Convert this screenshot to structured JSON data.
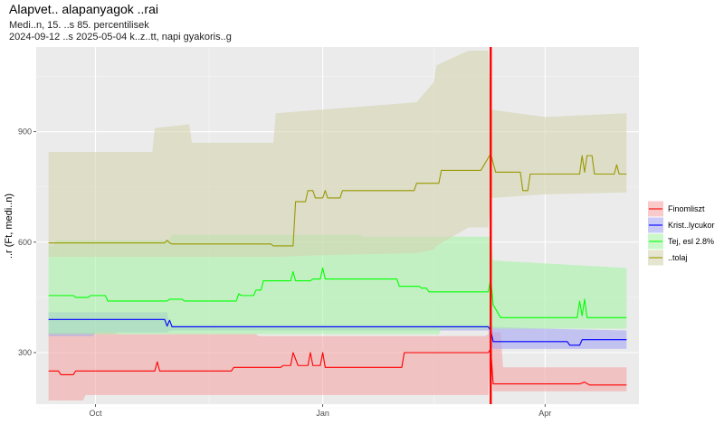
{
  "chart_data": {
    "type": "line",
    "title": "Alapvet.. alapanyagok ..rai",
    "subtitle_line1": "Medi..n, 15. ..s 85. percentilisek",
    "subtitle_line2": "2024-09-12 ..s 2025-05-04 k..z..tt, napi gyakoris..g",
    "xlabel": "",
    "ylabel": "..r (Ft, medi..n)",
    "x_range": [
      "2024-09-07",
      "2025-05-09"
    ],
    "ylim": [
      160,
      1130
    ],
    "y_ticks": [
      300,
      600,
      900
    ],
    "x_ticks": [
      {
        "date": "2024-10-01",
        "label": "Oct"
      },
      {
        "date": "2025-01-01",
        "label": "Jan"
      },
      {
        "date": "2025-04-01",
        "label": "Apr"
      }
    ],
    "grid": true,
    "legend_position": "right",
    "vline": {
      "date": "2025-03-10",
      "color": "#ff0000"
    },
    "series": [
      {
        "name": "Finomliszt",
        "color": "#ff0000",
        "band_color": "#f4a6a6",
        "points": [
          [
            "2024-09-12",
            250
          ],
          [
            "2024-09-16",
            250
          ],
          [
            "2024-09-17",
            240
          ],
          [
            "2024-09-22",
            240
          ],
          [
            "2024-09-23",
            250
          ],
          [
            "2024-10-25",
            250
          ],
          [
            "2024-10-26",
            275
          ],
          [
            "2024-10-27",
            250
          ],
          [
            "2024-11-25",
            250
          ],
          [
            "2024-11-26",
            260
          ],
          [
            "2024-12-15",
            260
          ],
          [
            "2024-12-16",
            265
          ],
          [
            "2024-12-19",
            265
          ],
          [
            "2024-12-20",
            300
          ],
          [
            "2024-12-22",
            265
          ],
          [
            "2024-12-26",
            265
          ],
          [
            "2024-12-27",
            300
          ],
          [
            "2024-12-28",
            265
          ],
          [
            "2024-12-31",
            265
          ],
          [
            "2025-01-01",
            300
          ],
          [
            "2025-01-02",
            260
          ],
          [
            "2025-02-02",
            260
          ],
          [
            "2025-02-03",
            300
          ],
          [
            "2025-03-05",
            300
          ],
          [
            "2025-03-07",
            300
          ],
          [
            "2025-03-09",
            300
          ],
          [
            "2025-03-10",
            310
          ],
          [
            "2025-03-11",
            215
          ],
          [
            "2025-04-15",
            215
          ],
          [
            "2025-04-17",
            220
          ],
          [
            "2025-04-19",
            212
          ],
          [
            "2025-05-04",
            212
          ]
        ],
        "band": [
          [
            "2024-09-12",
            170,
            355
          ],
          [
            "2024-09-26",
            170,
            355
          ],
          [
            "2024-09-27",
            185,
            355
          ],
          [
            "2024-10-09",
            185,
            355
          ],
          [
            "2024-10-10",
            185,
            350
          ],
          [
            "2024-12-05",
            185,
            350
          ],
          [
            "2024-12-06",
            185,
            345
          ],
          [
            "2025-03-08",
            185,
            345
          ],
          [
            "2025-03-09",
            185,
            350
          ],
          [
            "2025-03-10",
            320,
            360
          ],
          [
            "2025-03-11",
            195,
            355
          ],
          [
            "2025-03-14",
            195,
            355
          ],
          [
            "2025-03-15",
            195,
            260
          ],
          [
            "2025-05-04",
            195,
            260
          ]
        ]
      },
      {
        "name": "Krist..lycukor",
        "color": "#0000ff",
        "band_color": "#a6a6f4",
        "points": [
          [
            "2024-09-12",
            390
          ],
          [
            "2024-10-29",
            390
          ],
          [
            "2024-10-30",
            372
          ],
          [
            "2024-10-31",
            388
          ],
          [
            "2024-11-01",
            370
          ],
          [
            "2025-03-09",
            370
          ],
          [
            "2025-03-10",
            360
          ],
          [
            "2025-03-11",
            330
          ],
          [
            "2025-04-10",
            330
          ],
          [
            "2025-04-11",
            320
          ],
          [
            "2025-04-15",
            320
          ],
          [
            "2025-04-16",
            335
          ],
          [
            "2025-05-04",
            335
          ]
        ],
        "band": [
          [
            "2024-09-12",
            345,
            410
          ],
          [
            "2024-09-30",
            345,
            410
          ],
          [
            "2024-10-01",
            355,
            410
          ],
          [
            "2024-10-30",
            355,
            410
          ],
          [
            "2024-10-31",
            360,
            375
          ],
          [
            "2025-03-08",
            360,
            375
          ],
          [
            "2025-03-09",
            360,
            375
          ],
          [
            "2025-03-10",
            315,
            375
          ],
          [
            "2025-03-11",
            310,
            370
          ],
          [
            "2025-04-01",
            310,
            365
          ],
          [
            "2025-05-04",
            310,
            360
          ]
        ]
      },
      {
        "name": "Tej, esl 2.8%",
        "color": "#00ff00",
        "band_color": "#a6f4a6",
        "points": [
          [
            "2024-09-12",
            455
          ],
          [
            "2024-09-22",
            455
          ],
          [
            "2024-09-23",
            450
          ],
          [
            "2024-09-28",
            450
          ],
          [
            "2024-09-29",
            455
          ],
          [
            "2024-10-05",
            455
          ],
          [
            "2024-10-06",
            440
          ],
          [
            "2024-10-30",
            440
          ],
          [
            "2024-10-31",
            445
          ],
          [
            "2024-11-05",
            445
          ],
          [
            "2024-11-06",
            440
          ],
          [
            "2024-11-27",
            440
          ],
          [
            "2024-11-28",
            460
          ],
          [
            "2024-11-29",
            455
          ],
          [
            "2024-12-04",
            455
          ],
          [
            "2024-12-05",
            470
          ],
          [
            "2024-12-07",
            470
          ],
          [
            "2024-12-08",
            495
          ],
          [
            "2024-12-19",
            495
          ],
          [
            "2024-12-20",
            520
          ],
          [
            "2024-12-21",
            495
          ],
          [
            "2024-12-27",
            495
          ],
          [
            "2024-12-28",
            500
          ],
          [
            "2024-12-31",
            500
          ],
          [
            "2025-01-01",
            530
          ],
          [
            "2025-01-02",
            500
          ],
          [
            "2025-01-31",
            500
          ],
          [
            "2025-02-01",
            480
          ],
          [
            "2025-02-09",
            480
          ],
          [
            "2025-02-10",
            475
          ],
          [
            "2025-02-12",
            475
          ],
          [
            "2025-02-13",
            465
          ],
          [
            "2025-03-09",
            465
          ],
          [
            "2025-03-10",
            500
          ],
          [
            "2025-03-11",
            430
          ],
          [
            "2025-03-14",
            395
          ],
          [
            "2025-04-14",
            395
          ],
          [
            "2025-04-15",
            440
          ],
          [
            "2025-04-16",
            400
          ],
          [
            "2025-04-17",
            445
          ],
          [
            "2025-04-18",
            395
          ],
          [
            "2025-05-04",
            395
          ]
        ],
        "band": [
          [
            "2024-09-12",
            350,
            590
          ],
          [
            "2024-09-14",
            350,
            590
          ],
          [
            "2024-09-15",
            350,
            605
          ],
          [
            "2024-10-31",
            350,
            605
          ],
          [
            "2024-11-01",
            350,
            620
          ],
          [
            "2025-01-16",
            350,
            620
          ],
          [
            "2025-01-17",
            350,
            615
          ],
          [
            "2025-02-17",
            350,
            615
          ],
          [
            "2025-02-18",
            365,
            615
          ],
          [
            "2025-03-10",
            365,
            615
          ],
          [
            "2025-03-11",
            365,
            550
          ],
          [
            "2025-05-04",
            365,
            530
          ]
        ]
      },
      {
        "name": "..tolaj",
        "color": "#999900",
        "band_color": "#d4d4b0",
        "points": [
          [
            "2024-09-12",
            598
          ],
          [
            "2024-10-29",
            598
          ],
          [
            "2024-10-30",
            605
          ],
          [
            "2024-10-31",
            598
          ],
          [
            "2024-11-01",
            595
          ],
          [
            "2024-12-11",
            595
          ],
          [
            "2024-12-12",
            590
          ],
          [
            "2024-12-20",
            590
          ],
          [
            "2024-12-21",
            710
          ],
          [
            "2024-12-25",
            710
          ],
          [
            "2024-12-26",
            740
          ],
          [
            "2024-12-28",
            740
          ],
          [
            "2024-12-29",
            720
          ],
          [
            "2025-01-01",
            720
          ],
          [
            "2025-01-02",
            740
          ],
          [
            "2025-01-03",
            720
          ],
          [
            "2025-01-08",
            720
          ],
          [
            "2025-01-09",
            740
          ],
          [
            "2025-02-07",
            740
          ],
          [
            "2025-02-08",
            760
          ],
          [
            "2025-02-17",
            760
          ],
          [
            "2025-02-18",
            795
          ],
          [
            "2025-03-06",
            795
          ],
          [
            "2025-03-10",
            840
          ],
          [
            "2025-03-12",
            790
          ],
          [
            "2025-03-22",
            790
          ],
          [
            "2025-03-23",
            740
          ],
          [
            "2025-03-25",
            740
          ],
          [
            "2025-03-26",
            785
          ],
          [
            "2025-04-15",
            785
          ],
          [
            "2025-04-16",
            835
          ],
          [
            "2025-04-17",
            790
          ],
          [
            "2025-04-18",
            835
          ],
          [
            "2025-04-20",
            835
          ],
          [
            "2025-04-21",
            785
          ],
          [
            "2025-04-29",
            785
          ],
          [
            "2025-04-30",
            810
          ],
          [
            "2025-05-01",
            785
          ],
          [
            "2025-05-04",
            785
          ]
        ],
        "band": [
          [
            "2024-09-12",
            560,
            845
          ],
          [
            "2024-10-24",
            560,
            845
          ],
          [
            "2024-10-25",
            560,
            910
          ],
          [
            "2024-11-08",
            560,
            920
          ],
          [
            "2024-11-09",
            560,
            870
          ],
          [
            "2024-12-12",
            560,
            870
          ],
          [
            "2024-12-13",
            560,
            950
          ],
          [
            "2025-01-01",
            565,
            960
          ],
          [
            "2025-02-08",
            570,
            980
          ],
          [
            "2025-02-15",
            580,
            1035
          ],
          [
            "2025-02-16",
            590,
            1080
          ],
          [
            "2025-03-01",
            640,
            1120
          ],
          [
            "2025-03-09",
            640,
            1120
          ],
          [
            "2025-03-10",
            720,
            960
          ],
          [
            "2025-04-01",
            730,
            940
          ],
          [
            "2025-05-04",
            735,
            950
          ]
        ]
      }
    ]
  }
}
